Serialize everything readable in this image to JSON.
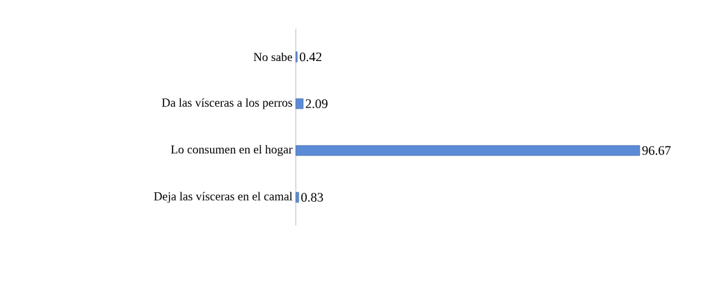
{
  "chart_data": {
    "type": "bar",
    "orientation": "horizontal",
    "categories": [
      "No sabe",
      "Da las vísceras a los perros",
      "Lo consumen en el hogar",
      "Deja las vísceras en el camal"
    ],
    "values": [
      0.42,
      2.09,
      96.67,
      0.83
    ],
    "color": "#5b8bd6",
    "data_labels": true,
    "tick_labels": "y"
  }
}
